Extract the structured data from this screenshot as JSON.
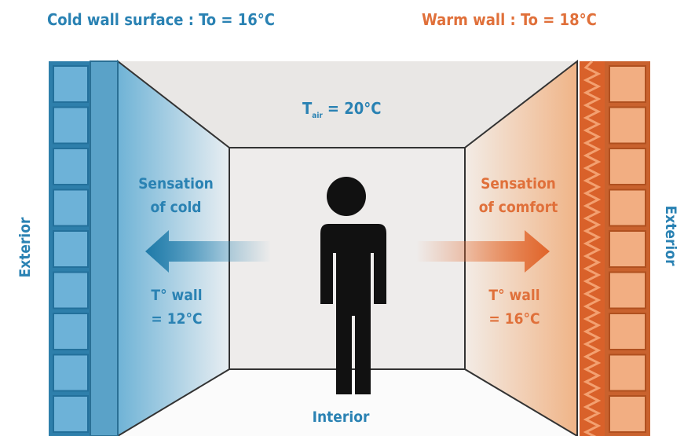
{
  "header": {
    "cold": "Cold wall surface : To = 16°C",
    "warm": "Warm wall : To = 18°C"
  },
  "room": {
    "air_temp": {
      "symbol": "T",
      "subscript": "air",
      "value": "= 20°C"
    },
    "interior": "Interior"
  },
  "left": {
    "sensation": [
      "Sensation",
      "of cold"
    ],
    "wall_temp": [
      "T° wall",
      "= 12°C"
    ],
    "side": "Exterior"
  },
  "right": {
    "sensation": [
      "Sensation",
      "of comfort"
    ],
    "wall_temp": [
      "T° wall",
      "= 16°C"
    ],
    "side": "Exterior"
  }
}
